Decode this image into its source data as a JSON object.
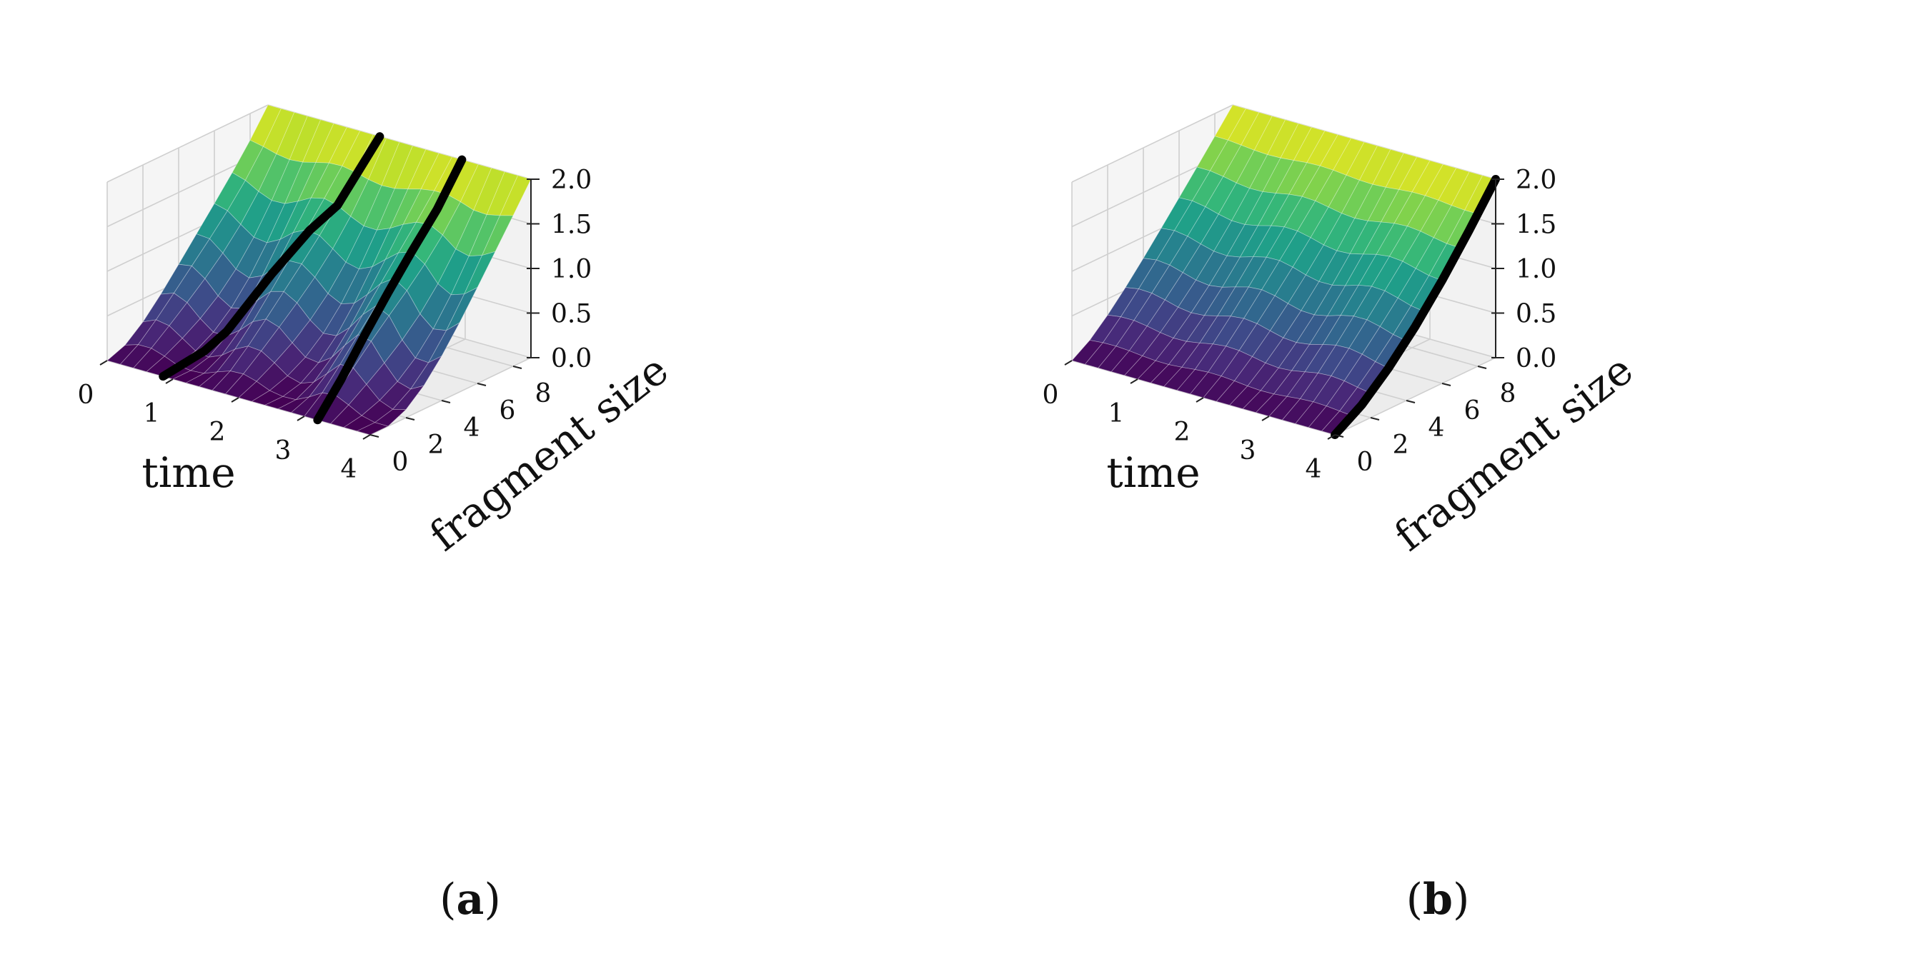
{
  "figure": {
    "panels": [
      {
        "label": "a",
        "caption_open": "(",
        "caption_letter": "a",
        "caption_close": ")",
        "path_count": 2
      },
      {
        "label": "b",
        "caption_open": "(",
        "caption_letter": "b",
        "caption_close": ")",
        "path_count": 1
      }
    ]
  },
  "chart_data": [
    {
      "type": "surface3d",
      "panel": "a",
      "xlabel": "time",
      "ylabel": "fragment size",
      "zlabel": "",
      "xlim": [
        0,
        4
      ],
      "ylim": [
        0,
        9
      ],
      "zlim": [
        0,
        2
      ],
      "xticks": [
        "0",
        "1",
        "2",
        "3",
        "4"
      ],
      "yticks": [
        "0",
        "2",
        "4",
        "6",
        "8"
      ],
      "zticks": [
        "0.0",
        "0.5",
        "1.0",
        "1.5",
        "2.0"
      ],
      "colormap": "viridis",
      "colors": {
        "viridis_low": "#440154",
        "viridis_mid": "#21918c",
        "viridis_high": "#fde725",
        "path": "#000000",
        "pane": "#f2f2f2",
        "grid": "#cfcfcf"
      },
      "annotation": "two black characteristic curves drawn on the surface",
      "paths": [
        {
          "x": [
            0.85,
            0.88,
            0.95,
            1.2,
            1.45,
            1.6,
            1.7
          ],
          "y": [
            0,
            2.2,
            3.2,
            4.8,
            6.0,
            7.0,
            9.0
          ]
        },
        {
          "x": [
            3.2,
            3.15,
            3.1,
            3.05,
            3.0,
            2.98,
            2.95
          ],
          "y": [
            0,
            1.5,
            3.0,
            4.5,
            6.0,
            7.5,
            9.0
          ]
        }
      ]
    },
    {
      "type": "surface3d",
      "panel": "b",
      "xlabel": "time",
      "ylabel": "fragment size",
      "zlabel": "",
      "xlim": [
        0,
        4
      ],
      "ylim": [
        0,
        9
      ],
      "zlim": [
        0,
        2
      ],
      "xticks": [
        "0",
        "1",
        "2",
        "3",
        "4"
      ],
      "yticks": [
        "0",
        "2",
        "4",
        "6",
        "8"
      ],
      "zticks": [
        "0.0",
        "0.5",
        "1.0",
        "1.5",
        "2.0"
      ],
      "colormap": "viridis",
      "colors": {
        "viridis_low": "#440154",
        "viridis_mid": "#21918c",
        "viridis_high": "#fde725",
        "path": "#000000",
        "pane": "#f2f2f2",
        "grid": "#cfcfcf"
      },
      "annotation": "one black characteristic curve along the edge at time 4",
      "paths": [
        {
          "x": [
            4,
            4,
            4,
            4,
            4,
            4,
            4
          ],
          "y": [
            0,
            1.5,
            3.0,
            4.5,
            6.0,
            7.5,
            9.0
          ]
        }
      ]
    }
  ]
}
